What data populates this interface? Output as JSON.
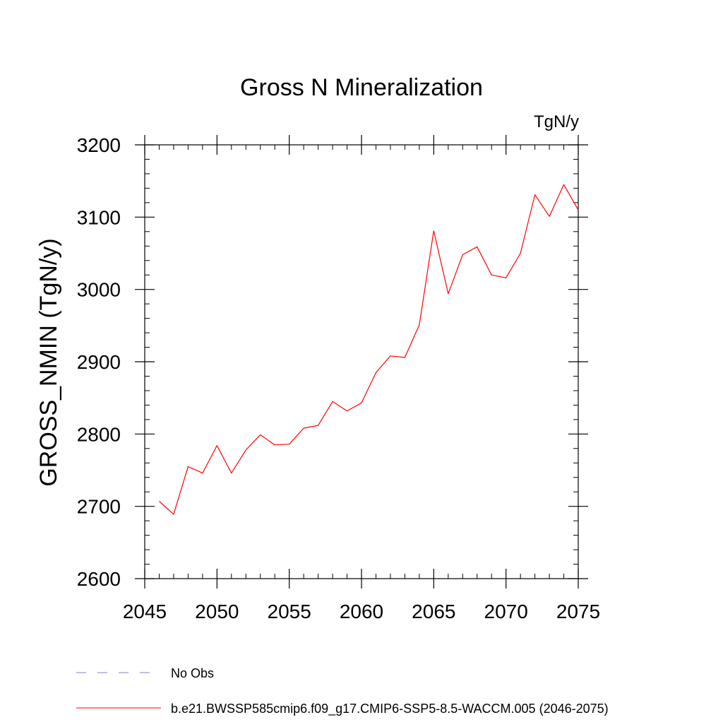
{
  "chart_data": {
    "type": "line",
    "title": "Gross N Mineralization",
    "units_label": "TgN/y",
    "ylabel": "GROSS_NMIN  (TgN/y)",
    "xlabel": "",
    "xlim": [
      2045,
      2075
    ],
    "ylim": [
      2600,
      3200
    ],
    "x_ticks": [
      2045,
      2050,
      2055,
      2060,
      2065,
      2070,
      2075
    ],
    "y_ticks": [
      2600,
      2700,
      2800,
      2900,
      3000,
      3100,
      3200
    ],
    "x_minor_step": 1,
    "y_minor_step": 20,
    "grid": false,
    "series": [
      {
        "name": "b.e21.BWSSP585cmip6.f09_g17.CMIP6-SSP5-8.5-WACCM.005 (2046-2075)",
        "color": "#ff0000",
        "line_style": "solid",
        "x": [
          2046,
          2047,
          2048,
          2049,
          2050,
          2051,
          2052,
          2053,
          2054,
          2055,
          2056,
          2057,
          2058,
          2059,
          2060,
          2061,
          2062,
          2063,
          2064,
          2065,
          2066,
          2067,
          2068,
          2069,
          2070,
          2071,
          2072,
          2073,
          2074,
          2075
        ],
        "y": [
          2707,
          2689,
          2755,
          2746,
          2784,
          2746,
          2778,
          2799,
          2785,
          2786,
          2808,
          2812,
          2845,
          2832,
          2843,
          2885,
          2908,
          2906,
          2951,
          3081,
          2994,
          3048,
          3059,
          3020,
          3016,
          3050,
          3131,
          3101,
          3145,
          3110
        ]
      }
    ],
    "legend": {
      "placement": "bottom-left",
      "entries": [
        {
          "label": "No Obs",
          "color": "#8080c0",
          "line_style": "dashed"
        },
        {
          "label": "b.e21.BWSSP585cmip6.f09_g17.CMIP6-SSP5-8.5-WACCM.005 (2046-2075)",
          "color": "#ff0000",
          "line_style": "solid"
        }
      ]
    }
  }
}
